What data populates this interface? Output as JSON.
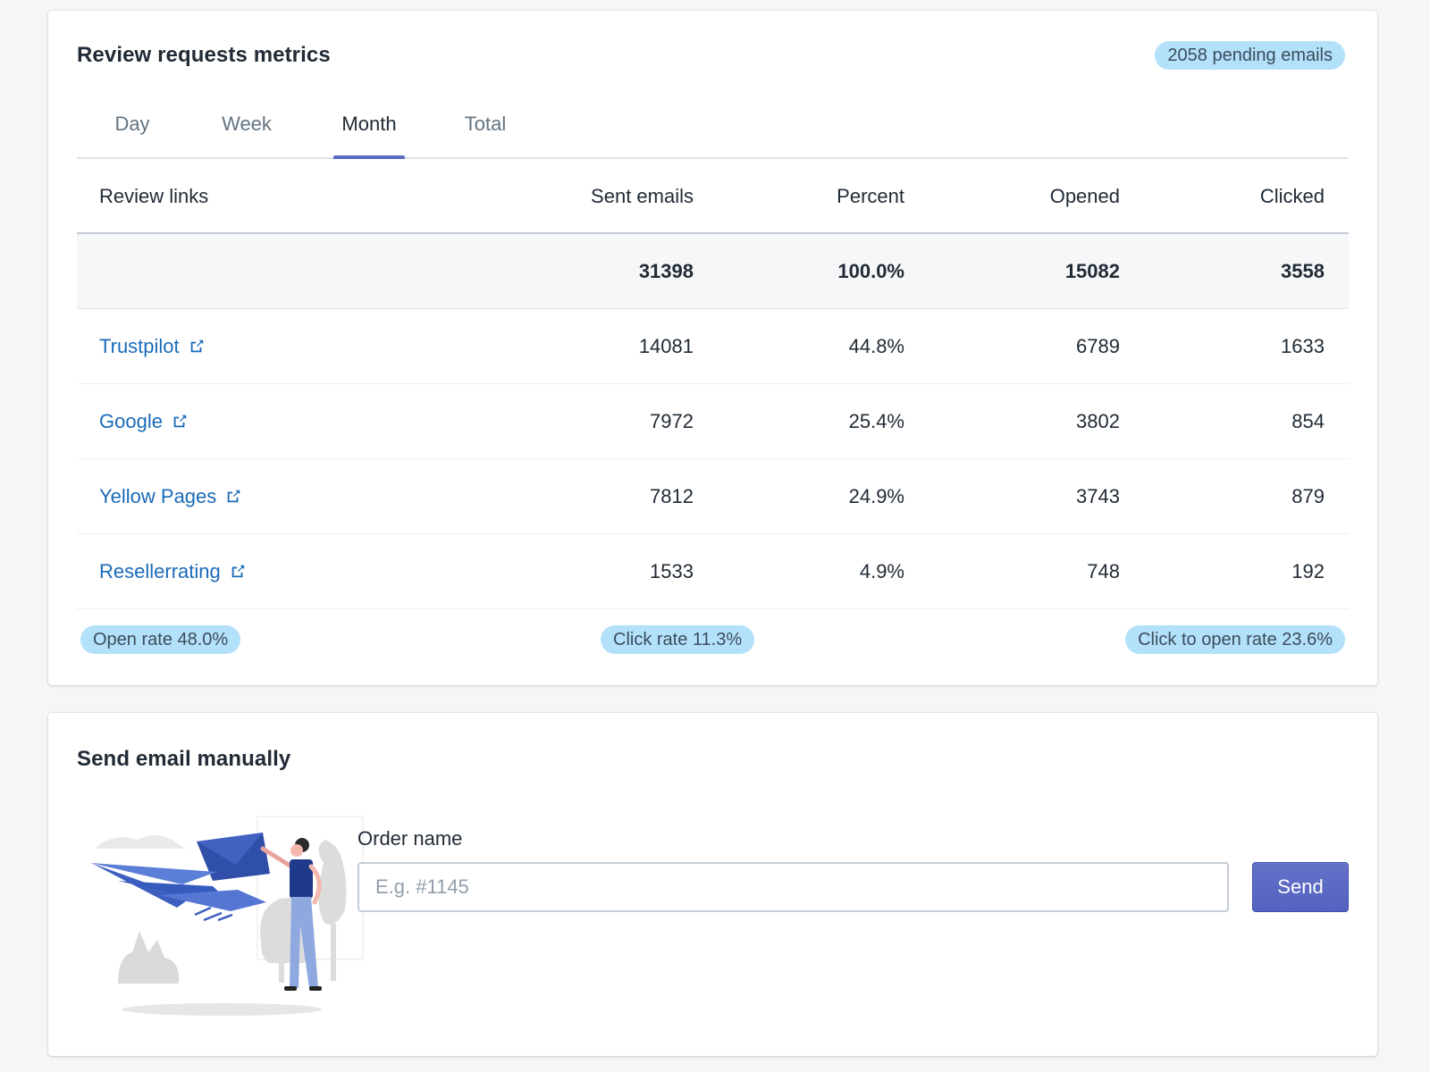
{
  "metrics": {
    "title": "Review requests metrics",
    "pending_badge": "2058 pending emails",
    "tabs": [
      {
        "label": "Day",
        "active": false
      },
      {
        "label": "Week",
        "active": false
      },
      {
        "label": "Month",
        "active": true
      },
      {
        "label": "Total",
        "active": false
      }
    ],
    "table": {
      "headers": [
        "Review links",
        "Sent emails",
        "Percent",
        "Opened",
        "Clicked"
      ],
      "totals": {
        "sent": "31398",
        "percent": "100.0%",
        "opened": "15082",
        "clicked": "3558"
      },
      "rows": [
        {
          "link": "Trustpilot",
          "sent": "14081",
          "percent": "44.8%",
          "opened": "6789",
          "clicked": "1633"
        },
        {
          "link": "Google",
          "sent": "7972",
          "percent": "25.4%",
          "opened": "3802",
          "clicked": "854"
        },
        {
          "link": "Yellow Pages",
          "sent": "7812",
          "percent": "24.9%",
          "opened": "3743",
          "clicked": "879"
        },
        {
          "link": "Resellerrating",
          "sent": "1533",
          "percent": "4.9%",
          "opened": "748",
          "clicked": "192"
        }
      ]
    },
    "rates": {
      "open_rate": "Open rate 48.0%",
      "click_rate": "Click rate 11.3%",
      "click_to_open_rate": "Click to open rate 23.6%"
    }
  },
  "manual": {
    "title": "Send email manually",
    "field_label": "Order name",
    "placeholder": "E.g. #1145",
    "value": "",
    "send_label": "Send"
  },
  "icons": {
    "external_link": "external-link-icon",
    "illustration": "person-sending-paper-plane-illustration"
  },
  "colors": {
    "accent": "#5c6ac4",
    "link": "#1a6bb8",
    "badge_bg": "#b4e1fa",
    "page_bg": "#f4f6f8"
  }
}
